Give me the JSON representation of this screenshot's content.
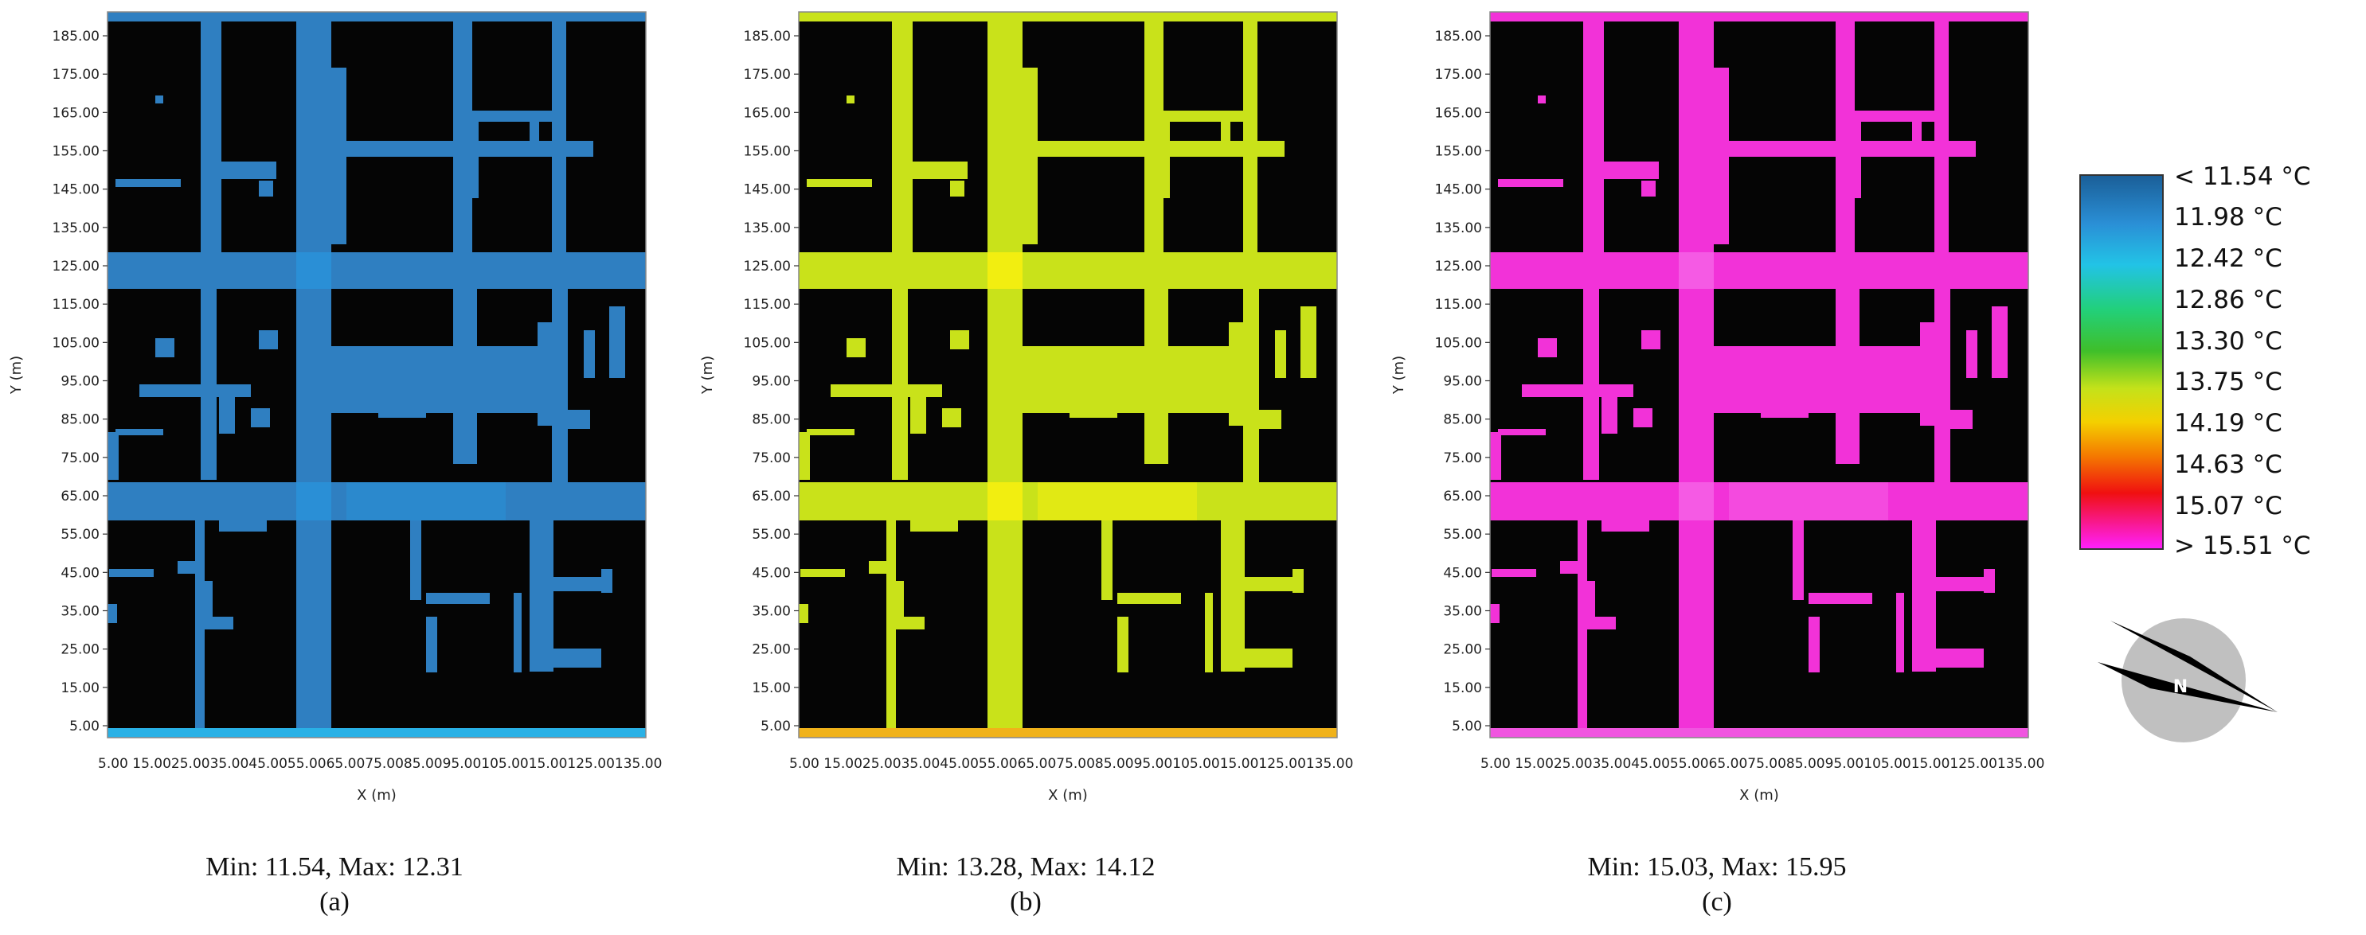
{
  "panels": [
    {
      "id": "a",
      "caption_stats": "Min: 11.54, Max: 12.31",
      "caption_label": "(a)",
      "street_color": "#2f7fc1",
      "street_color_hot": "#2a8fd6",
      "bottom_strip_color": "#29b1e6",
      "xlabel": "X (m)",
      "ylabel": "Y (m)"
    },
    {
      "id": "b",
      "caption_stats": "Min: 13.28, Max: 14.12",
      "caption_label": "(b)",
      "street_color": "#c9e21a",
      "street_color_hot": "#f2ee10",
      "bottom_strip_color": "#f0b21a",
      "xlabel": "X (m)",
      "ylabel": "Y (m)"
    },
    {
      "id": "c",
      "caption_stats": "Min: 15.03, Max: 15.95",
      "caption_label": "(c)",
      "street_color": "#f232d8",
      "street_color_hot": "#f55ae4",
      "bottom_strip_color": "#f055e0",
      "xlabel": "X (m)",
      "ylabel": "Y (m)"
    }
  ],
  "y_ticks": [
    "185.00",
    "175.00",
    "165.00",
    "155.00",
    "145.00",
    "135.00",
    "125.00",
    "115.00",
    "105.00",
    "95.00",
    "85.00",
    "75.00",
    "65.00",
    "55.00",
    "45.00",
    "35.00",
    "25.00",
    "15.00",
    "5.00"
  ],
  "x_tick_text": "5.00 15.0025.0035.0045.0055.0065.0075.0085.0095.00105.0015.00125.00135.00",
  "legend": {
    "labels": [
      "< 11.54 °C",
      "11.98  °C",
      "12.42  °C",
      "12.86  °C",
      "13.30  °C",
      "13.75  °C",
      "14.19  °C",
      "14.63  °C",
      "15.07  °C",
      "> 15.51 °C"
    ],
    "colors": [
      "#1a5e97",
      "#2a8fd6",
      "#22c3e6",
      "#22d07a",
      "#3fbf2a",
      "#c4e21a",
      "#f4d000",
      "#f47a00",
      "#f01010",
      "#ff20ff"
    ]
  },
  "compass": {
    "label": "N"
  }
}
